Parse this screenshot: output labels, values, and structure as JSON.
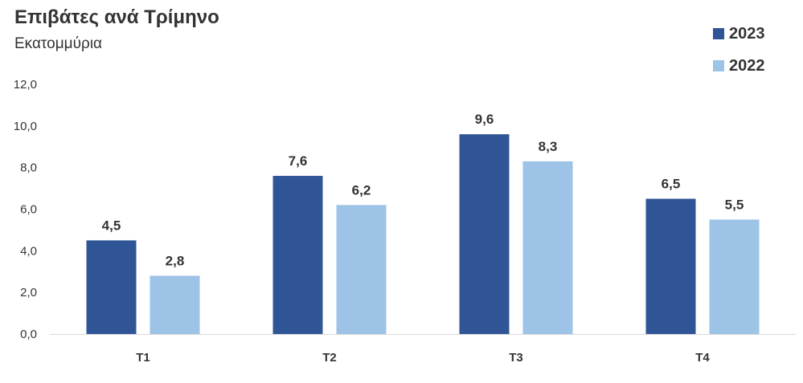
{
  "chart_data": {
    "type": "bar",
    "title": "Επιβάτες ανά Τρίμηνο",
    "subtitle": "Εκατομμύρια",
    "categories": [
      "T1",
      "T2",
      "T3",
      "T4"
    ],
    "series": [
      {
        "name": "2023",
        "values": [
          4.5,
          7.6,
          9.6,
          6.5
        ],
        "labels": [
          "4,5",
          "7,6",
          "9,6",
          "6,5"
        ],
        "color": "#2f5597"
      },
      {
        "name": "2022",
        "values": [
          2.8,
          6.2,
          8.3,
          5.5
        ],
        "labels": [
          "2,8",
          "6,2",
          "8,3",
          "5,5"
        ],
        "color": "#9dc3e6"
      }
    ],
    "y_ticks": [
      "0,0",
      "2,0",
      "4,0",
      "6,0",
      "8,0",
      "10,0",
      "12,0"
    ],
    "ylim": [
      0,
      12
    ],
    "grid": false,
    "legend": "top-right"
  }
}
